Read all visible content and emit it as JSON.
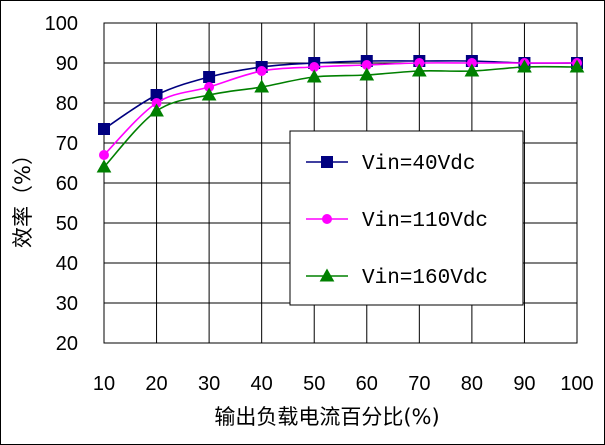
{
  "chart_data": {
    "type": "line",
    "title": "",
    "xlabel": "输出负载电流百分比(%)",
    "ylabel": "效率（%）",
    "x": [
      10,
      20,
      30,
      40,
      50,
      60,
      70,
      80,
      90,
      100
    ],
    "xlim": [
      10,
      100
    ],
    "ylim": [
      20,
      100
    ],
    "xticks": [
      "10",
      "20",
      "30",
      "40",
      "50",
      "60",
      "70",
      "80",
      "90",
      "100"
    ],
    "yticks": [
      "20",
      "30",
      "40",
      "50",
      "60",
      "70",
      "80",
      "90",
      "100"
    ],
    "grid": true,
    "legend_position": "center-right",
    "series": [
      {
        "name": "Vin=40Vdc",
        "color": "#000080",
        "marker": "square",
        "values": [
          73.5,
          82,
          86.5,
          89,
          90,
          90.5,
          90.5,
          90.5,
          90,
          90
        ]
      },
      {
        "name": "Vin=110Vdc",
        "color": "#ff00ff",
        "marker": "circle",
        "values": [
          67,
          80,
          84,
          88,
          89,
          89.5,
          90,
          90,
          90,
          90
        ]
      },
      {
        "name": "Vin=160Vdc",
        "color": "#008000",
        "marker": "triangle",
        "values": [
          64,
          78,
          82,
          84,
          86.5,
          87,
          88,
          88,
          89,
          89
        ]
      }
    ]
  }
}
